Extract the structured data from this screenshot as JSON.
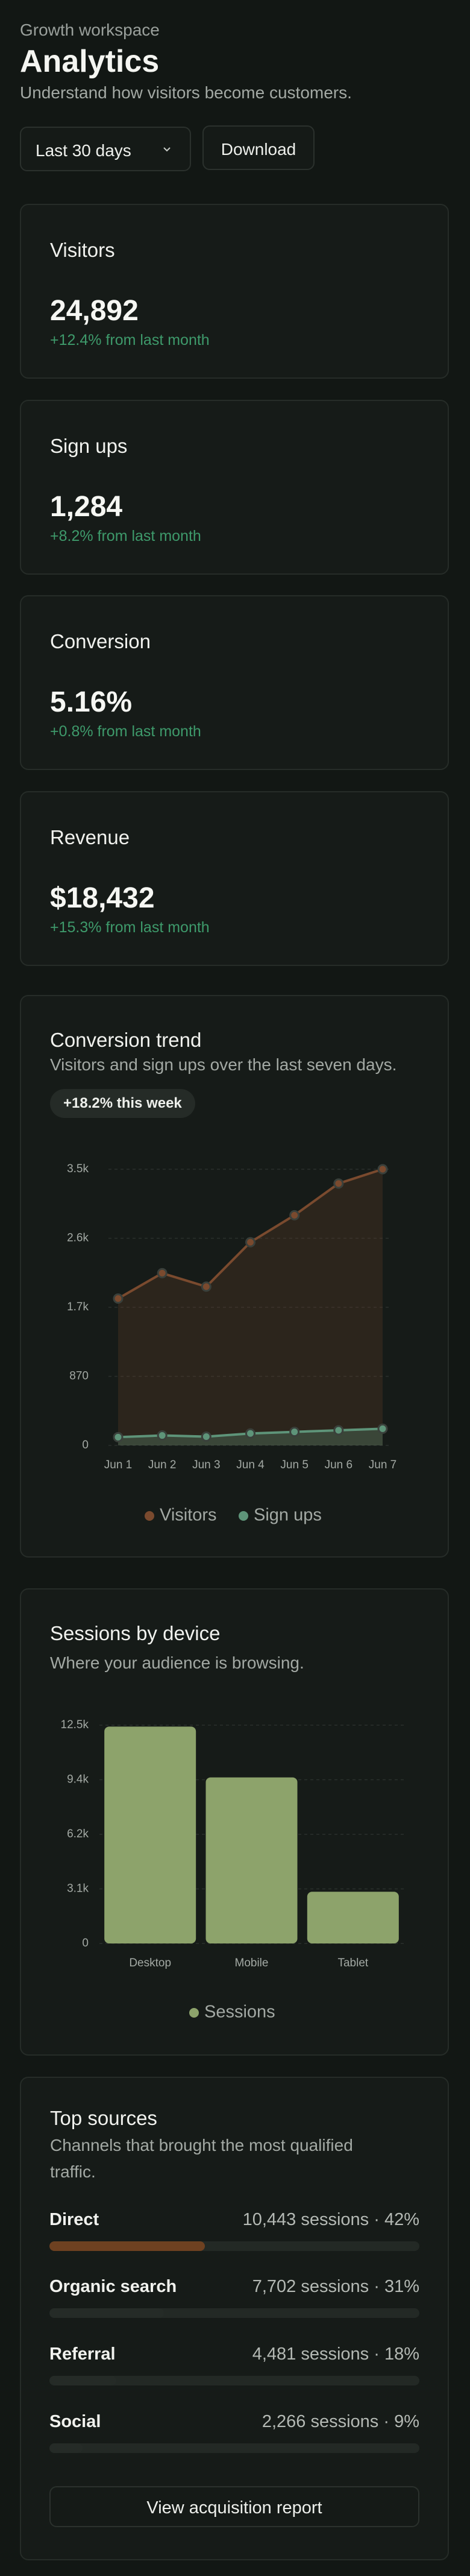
{
  "header": {
    "eyebrow": "Growth workspace",
    "title": "Analytics",
    "subtitle": "Understand how visitors become customers."
  },
  "controls": {
    "range": "Last 30 days",
    "download": "Download"
  },
  "kpis": [
    {
      "label": "Visitors",
      "value": "24,892",
      "change": "+12.4% from last month"
    },
    {
      "label": "Sign ups",
      "value": "1,284",
      "change": "+8.2% from last month"
    },
    {
      "label": "Conversion",
      "value": "5.16%",
      "change": "+0.8% from last month"
    },
    {
      "label": "Revenue",
      "value": "$18,432",
      "change": "+15.3% from last month"
    }
  ],
  "chart_data": [
    {
      "type": "line",
      "title": "Conversion trend",
      "subtitle": "Visitors and sign ups over the last seven days.",
      "badge": "+18.2% this week",
      "categories": [
        "Jun 1",
        "Jun 2",
        "Jun 3",
        "Jun 4",
        "Jun 5",
        "Jun 6",
        "Jun 7"
      ],
      "series": [
        {
          "name": "Visitors",
          "color": "#7a4a2e",
          "values": [
            1850,
            2170,
            2000,
            2560,
            2900,
            3300,
            3480
          ]
        },
        {
          "name": "Sign ups",
          "color": "#5e9479",
          "values": [
            104,
            125,
            110,
            150,
            170,
            190,
            210
          ]
        }
      ],
      "ylim": [
        0,
        3480
      ],
      "yticks": [
        0,
        870,
        {
          "value": 1740,
          "label": "1.7k"
        },
        {
          "value": 2610,
          "label": "2.6k"
        },
        {
          "value": 3480,
          "label": "3.5k"
        }
      ],
      "grid": true,
      "legend": "bottom"
    },
    {
      "type": "bar",
      "title": "Sessions by device",
      "subtitle": "Where your audience is browsing.",
      "categories": [
        "Desktop",
        "Mobile",
        "Tablet"
      ],
      "series": [
        {
          "name": "Sessions",
          "color": "#8da36b",
          "values": [
            12420,
            9510,
            2962
          ]
        }
      ],
      "ylim": [
        0,
        12500
      ],
      "yticks": [
        0,
        {
          "value": 3125,
          "label": "3.1k"
        },
        {
          "value": 6250,
          "label": "6.2k"
        },
        {
          "value": 9375,
          "label": "9.4k"
        },
        {
          "value": 12500,
          "label": "12.5k"
        }
      ],
      "grid": true,
      "legend": "bottom"
    }
  ],
  "sources": {
    "title": "Top sources",
    "subtitle": [
      "Channels that brought the most qualified",
      "traffic."
    ],
    "rows": [
      {
        "name": "Direct",
        "detail": "10,443 sessions · 42%",
        "share": 42,
        "color": "#6e4121"
      },
      {
        "name": "Organic search",
        "detail": "7,702 sessions · 31%",
        "share": 31,
        "color": "#252b27"
      },
      {
        "name": "Referral",
        "detail": "4,481 sessions · 18%",
        "share": 18,
        "color": "#252b27"
      },
      {
        "name": "Social",
        "detail": "2,266 sessions · 9%",
        "share": 9,
        "color": "#252b27"
      }
    ],
    "button": "View acquisition report"
  }
}
